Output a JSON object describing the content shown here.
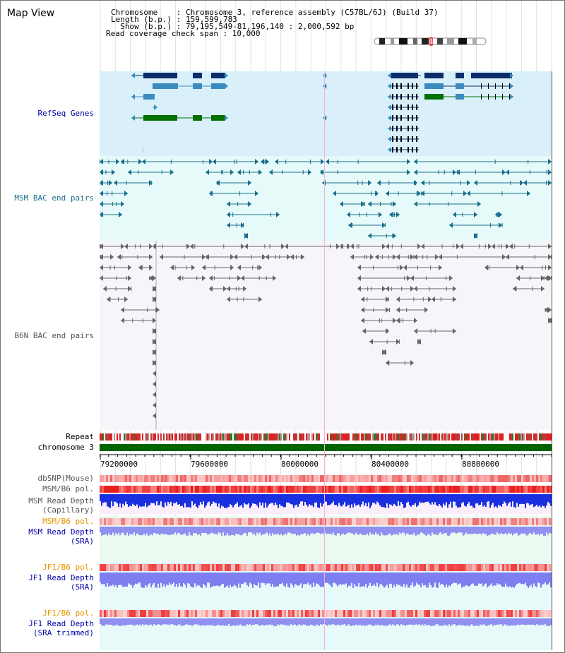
{
  "header": {
    "view_title": "Map View",
    "chromosome_line": "Chromosome    : Chromosome 3, reference assembly (C57BL/6J) (Build 37)",
    "length_line": "Length (b.p.) : 159,599,783",
    "show_line": "  Show (b.p.) : 79,195,549-81,196,140 : 2,000,592 bp",
    "coverage_line": "Read coverage check span : 10,000"
  },
  "tracks": {
    "refseq_label": "RefSeq Genes",
    "msm_bac_label": "MSM BAC end pairs",
    "b6n_bac_label": "B6N BAC end pairs",
    "repeat_label": "Repeat",
    "chromosome_label": "chromosome 3",
    "dbsnp_label": "dbSNP(Mouse)",
    "msm_b6_pol_label": "MSM/B6 pol.",
    "msm_depth_cap_label_1": "MSM Read Depth",
    "msm_depth_cap_label_2": "(Capillary)",
    "msm_b6_pol2_label": "MSM/B6 pol.",
    "msm_depth_sra_label_1": "MSM Read Depth",
    "msm_depth_sra_label_2": "(SRA)",
    "jf1_pol_label": "JF1/B6 pol.",
    "jf1_depth_label_1": "JF1 Read Depth",
    "jf1_depth_label_2": "(SRA)",
    "jf1_pol2_label": "JF1/B6 pol.",
    "jf1_trim_label_1": "JF1 Read Depth",
    "jf1_trim_label_2": "(SRA trimmed)"
  },
  "axis": {
    "ticks": [
      "79200000",
      "79600000",
      "80000000",
      "80400000",
      "80800000"
    ]
  },
  "colors": {
    "refseq_bg": "#d9f0fa",
    "msm_bg": "#e6fafa",
    "gene_dark": "#0d2d6b",
    "gene_mid": "#3b8bbf",
    "gene_green": "#007000",
    "bac_msm": "#1a6e8c",
    "bac_b6n": "#666666",
    "label_blue": "#0000aa",
    "label_teal": "#1a6e8c",
    "label_orange": "#e69500",
    "chrom_green": "#006400"
  }
}
